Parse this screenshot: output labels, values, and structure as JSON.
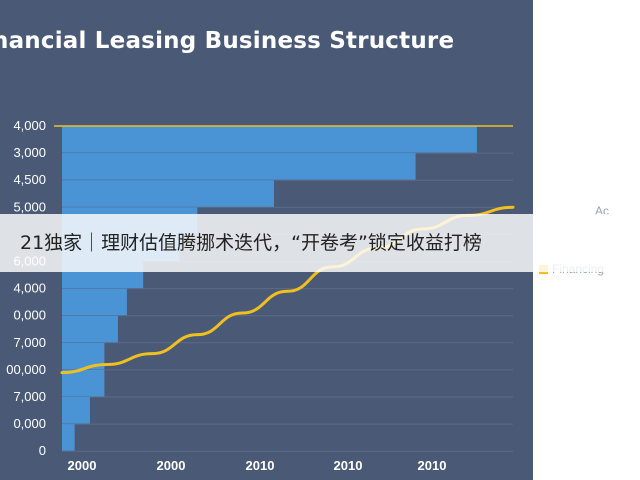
{
  "chart_data": {
    "type": "bar",
    "orientation": "horizontal",
    "title": "nancial Leasing Business Structure",
    "y_tick_labels": [
      "4,000",
      "3,000",
      "4,500",
      "5,000",
      "",
      "6,000",
      "4,000",
      "0,000",
      "7,000",
      "00,000",
      "7,000",
      "0,000",
      "0"
    ],
    "x_tick_labels": [
      "2000",
      "2000",
      "2010",
      "2010",
      "2010"
    ],
    "xlim": [
      0,
      500
    ],
    "grid": true,
    "series": [
      {
        "kind": "bar",
        "color": "#4a93d4",
        "values": [
          460,
          392,
          235,
          150,
          130,
          90,
          72,
          62,
          47,
          47,
          31,
          14
        ]
      },
      {
        "kind": "line",
        "name": "Financing",
        "color": "#f0c020",
        "x": [
          0,
          50,
          100,
          150,
          200,
          250,
          300,
          350,
          400,
          450,
          500
        ],
        "y": [
          2.9,
          3.2,
          3.6,
          4.3,
          5.1,
          5.9,
          6.8,
          7.5,
          8.2,
          8.7,
          9.0
        ]
      },
      {
        "kind": "reference-line",
        "color": "#f0c020",
        "value_row": 0
      }
    ],
    "legend": {
      "placement": "right",
      "entries": [
        "Financing"
      ],
      "partial_text": "Ac"
    }
  },
  "caption": "21独家｜理财估值腾挪术迭代，“开卷考”锁定收益打榜",
  "colors": {
    "panel_bg": "#4a5a76",
    "bar": "#4a93d4",
    "line": "#f0c020",
    "grid": "#5d6b85"
  }
}
